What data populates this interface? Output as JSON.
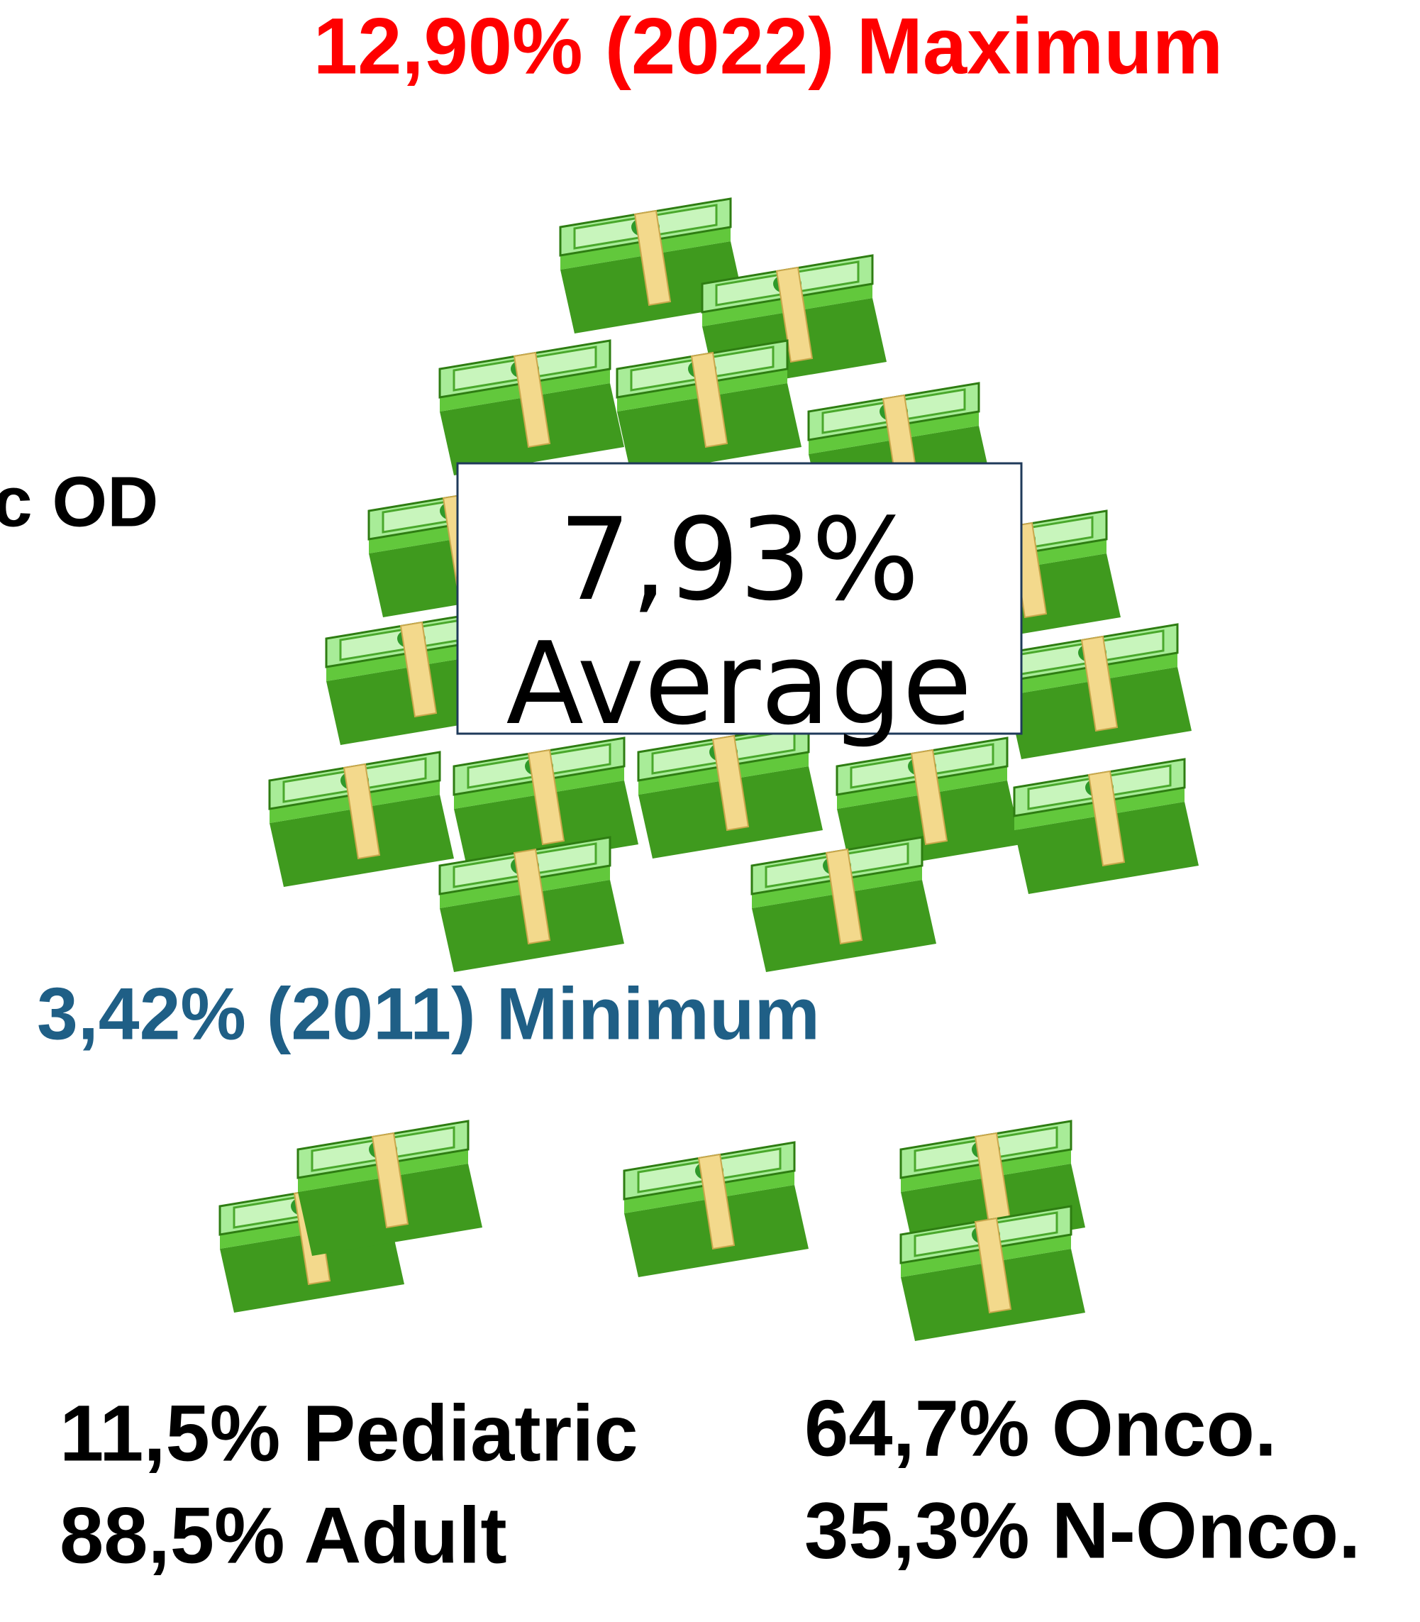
{
  "header": {
    "maximum": "12,90% (2022) Maximum",
    "cut_label": "c OD"
  },
  "average": {
    "value": "7,93%",
    "label": "Average"
  },
  "minimum": "3,42% (2011) Minimum",
  "age_split": {
    "pediatric": "11,5% Pediatric",
    "adult": "88,5% Adult"
  },
  "type_split": {
    "onco": "64,7% Onco.",
    "non_onco": "35,3% N-Onco."
  }
}
